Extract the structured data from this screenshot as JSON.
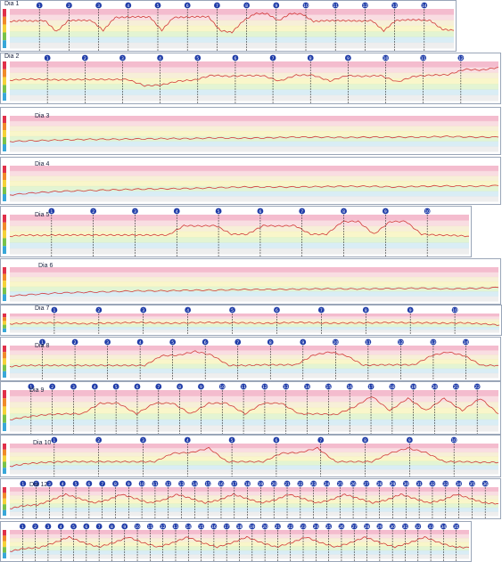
{
  "colors": {
    "zone_bands": [
      "#ef9fb9",
      "#f6cfd6",
      "#f4e8c8",
      "#f6f2b4",
      "#d7efc1",
      "#c9e6f1",
      "#e7e7e7"
    ],
    "marker_fill": "#1f3ca8",
    "hr_line": "#d23a3a",
    "active_green": "#8fd67a",
    "active_orange": "#f7c66a",
    "active_blue": "#a8dbef",
    "active_grey": "#d8d8d8"
  },
  "chart_data": [
    {
      "type": "line",
      "title": "Dia 1",
      "series": [
        {
          "values": [
            0.32,
            0.3,
            0.31,
            0.3,
            0.58,
            0.3,
            0.29,
            0.3,
            0.55,
            0.22,
            0.21,
            0.2,
            0.21,
            0.55,
            0.22,
            0.21,
            0.2,
            0.2,
            0.55,
            0.6,
            0.3,
            0.12,
            0.12,
            0.3,
            0.12,
            0.13,
            0.32,
            0.3,
            0.3,
            0.3,
            0.31,
            0.3,
            0.56,
            0.3,
            0.28,
            0.28,
            0.3,
            0.52,
            0.55
          ]
        }
      ],
      "markers": [
        "1",
        "2",
        "3",
        "4",
        "5",
        "6",
        "7",
        "8",
        "9",
        "10",
        "11",
        "12",
        "13",
        "14"
      ]
    },
    {
      "type": "line",
      "title": "Dia 2",
      "series": [
        {
          "values": [
            0.48,
            0.45,
            0.46,
            0.47,
            0.46,
            0.46,
            0.46,
            0.46,
            0.62,
            0.6,
            0.5,
            0.47,
            0.35,
            0.38,
            0.36,
            0.36,
            0.5,
            0.35,
            0.35,
            0.5,
            0.36,
            0.38,
            0.36,
            0.52,
            0.38,
            0.35,
            0.34,
            0.2,
            0.22,
            0.15
          ]
        }
      ],
      "markers": [
        "1",
        "2",
        "3",
        "4",
        "5",
        "6",
        "7",
        "8",
        "9",
        "10",
        "11",
        "12"
      ]
    },
    {
      "type": "line",
      "title": "Dia 3",
      "series": [
        {
          "values": [
            0.72,
            0.7,
            0.68,
            0.66,
            0.66,
            0.65,
            0.64,
            0.64,
            0.62,
            0.63,
            0.62,
            0.6,
            0.6,
            0.61,
            0.6,
            0.6,
            0.6,
            0.58,
            0.6,
            0.6
          ]
        }
      ],
      "markers": []
    },
    {
      "type": "line",
      "title": "Dia 4",
      "series": [
        {
          "values": [
            0.82,
            0.76,
            0.72,
            0.7,
            0.68,
            0.66,
            0.65,
            0.64,
            0.62,
            0.6,
            0.6,
            0.6,
            0.59,
            0.58,
            0.58,
            0.6,
            0.58,
            0.57,
            0.58,
            0.56
          ]
        }
      ],
      "markers": []
    },
    {
      "type": "line",
      "title": "Dia 5",
      "series": [
        {
          "values": [
            0.55,
            0.52,
            0.53,
            0.52,
            0.52,
            0.52,
            0.52,
            0.52,
            0.52,
            0.52,
            0.52,
            0.28,
            0.29,
            0.28,
            0.5,
            0.5,
            0.28,
            0.29,
            0.28,
            0.5,
            0.5,
            0.18,
            0.17,
            0.5,
            0.18,
            0.17,
            0.5,
            0.52,
            0.53,
            0.55
          ]
        }
      ],
      "markers": [
        "1",
        "2",
        "3",
        "4",
        "5",
        "6",
        "7",
        "8",
        "9",
        "10"
      ]
    },
    {
      "type": "line",
      "title": "Dia 6",
      "series": [
        {
          "values": [
            0.85,
            0.8,
            0.76,
            0.74,
            0.72,
            0.7,
            0.7,
            0.68,
            0.68,
            0.66,
            0.66,
            0.65,
            0.64,
            0.64,
            0.64,
            0.63,
            0.62,
            0.64,
            0.63,
            0.6
          ]
        }
      ],
      "markers": []
    },
    {
      "type": "line",
      "title": "Dia 7",
      "series": [
        {
          "values": [
            0.55,
            0.52,
            0.5,
            0.5,
            0.55,
            0.52,
            0.5,
            0.48,
            0.5,
            0.52,
            0.5,
            0.48,
            0.5,
            0.5,
            0.52,
            0.5,
            0.48,
            0.5,
            0.52,
            0.5,
            0.5,
            0.48,
            0.5,
            0.5,
            0.52,
            0.5,
            0.55,
            0.62
          ]
        }
      ],
      "markers": [
        "1",
        "2",
        "3",
        "4",
        "5",
        "6",
        "7",
        "8",
        "9",
        "10"
      ]
    },
    {
      "type": "line",
      "title": "Dia 8",
      "series": [
        {
          "values": [
            0.65,
            0.62,
            0.62,
            0.62,
            0.62,
            0.62,
            0.62,
            0.62,
            0.62,
            0.32,
            0.3,
            0.18,
            0.3,
            0.62,
            0.62,
            0.6,
            0.6,
            0.6,
            0.3,
            0.2,
            0.32,
            0.62,
            0.6,
            0.6,
            0.6,
            0.32,
            0.2,
            0.32,
            0.62,
            0.62
          ]
        }
      ],
      "markers": [
        "1",
        "2",
        "3",
        "4",
        "5",
        "6",
        "7",
        "8",
        "9",
        "10",
        "11",
        "12",
        "13",
        "14"
      ]
    },
    {
      "type": "line",
      "title": "Dia 9",
      "series": [
        {
          "values": [
            0.72,
            0.65,
            0.6,
            0.58,
            0.58,
            0.32,
            0.32,
            0.58,
            0.32,
            0.32,
            0.58,
            0.32,
            0.32,
            0.58,
            0.32,
            0.32,
            0.58,
            0.58,
            0.6,
            0.42,
            0.15,
            0.5,
            0.2,
            0.5,
            0.2,
            0.5,
            0.2,
            0.58
          ]
        }
      ],
      "markers": [
        "1",
        "2",
        "3",
        "4",
        "5",
        "6",
        "7",
        "8",
        "9",
        "10",
        "11",
        "12",
        "13",
        "14",
        "15",
        "16",
        "17",
        "18",
        "19",
        "20",
        "21",
        "22"
      ]
    },
    {
      "type": "line",
      "title": "Dia 10",
      "series": [
        {
          "values": [
            0.75,
            0.66,
            0.62,
            0.6,
            0.6,
            0.6,
            0.6,
            0.6,
            0.6,
            0.32,
            0.3,
            0.15,
            0.6,
            0.6,
            0.6,
            0.32,
            0.3,
            0.15,
            0.6,
            0.6,
            0.6,
            0.32,
            0.15,
            0.3,
            0.6,
            0.6,
            0.62,
            0.62
          ]
        }
      ],
      "markers": [
        "1",
        "2",
        "3",
        "4",
        "5",
        "6",
        "7",
        "8",
        "9",
        "10"
      ]
    },
    {
      "type": "line",
      "title": "Dia 12",
      "series": [
        {
          "values": [
            0.75,
            0.65,
            0.62,
            0.45,
            0.25,
            0.4,
            0.55,
            0.45,
            0.25,
            0.4,
            0.55,
            0.45,
            0.25,
            0.4,
            0.55,
            0.45,
            0.25,
            0.4,
            0.55,
            0.45,
            0.25,
            0.4,
            0.55,
            0.45,
            0.25,
            0.4,
            0.55,
            0.45,
            0.25,
            0.4,
            0.55,
            0.45,
            0.25,
            0.4,
            0.55,
            0.58
          ]
        }
      ],
      "markers": [
        "1",
        "2",
        "3",
        "4",
        "5",
        "6",
        "7",
        "8",
        "9",
        "10",
        "11",
        "12",
        "13",
        "14",
        "15",
        "16",
        "17",
        "18",
        "19",
        "20",
        "21",
        "22",
        "23",
        "24",
        "25",
        "26",
        "27",
        "28",
        "29",
        "30",
        "31",
        "32",
        "33",
        "34",
        "35",
        "36"
      ]
    },
    {
      "type": "line",
      "title": "",
      "series": [
        {
          "values": [
            0.75,
            0.65,
            0.62,
            0.45,
            0.25,
            0.45,
            0.6,
            0.45,
            0.25,
            0.45,
            0.6,
            0.45,
            0.25,
            0.45,
            0.6,
            0.45,
            0.25,
            0.45,
            0.6,
            0.45,
            0.25,
            0.45,
            0.6,
            0.45,
            0.25,
            0.45,
            0.6,
            0.45,
            0.25,
            0.45,
            0.6,
            0.62
          ]
        }
      ],
      "markers": [
        "1",
        "2",
        "3",
        "4",
        "5",
        "6",
        "7",
        "8",
        "9",
        "10",
        "11",
        "12",
        "13",
        "14",
        "15",
        "16",
        "17",
        "18",
        "19",
        "20",
        "21",
        "22",
        "23",
        "24",
        "25",
        "26",
        "27",
        "28",
        "29",
        "30",
        "31",
        "32",
        "33",
        "34",
        "35"
      ]
    }
  ]
}
